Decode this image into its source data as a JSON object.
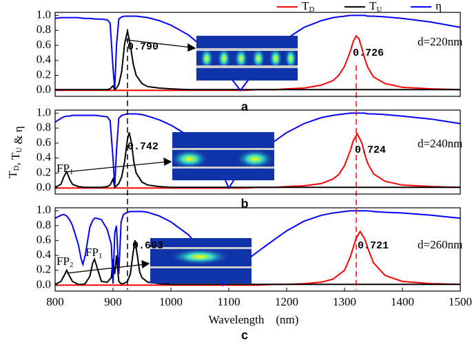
{
  "chart_data": [
    {
      "type": "line",
      "label": "a",
      "xlim": [
        800,
        1500
      ],
      "ylim": [
        -0.08,
        1.04
      ],
      "yticks": [
        {
          "value": 0,
          "label": "0.0"
        },
        0.2,
        0.4,
        0.6,
        0.8,
        {
          "value": 1,
          "label": "1.0"
        }
      ],
      "annotations": [
        "0.790",
        "0.726",
        "d=220nm"
      ],
      "x": [
        800,
        810,
        820,
        830,
        840,
        850,
        860,
        870,
        880,
        890,
        895,
        900,
        903,
        906,
        910,
        915,
        920,
        925,
        930,
        935,
        940,
        950,
        960,
        980,
        1000,
        1030,
        1060,
        1090,
        1100,
        1110,
        1120,
        1130,
        1150,
        1180,
        1200,
        1230,
        1260,
        1280,
        1290,
        1300,
        1310,
        1315,
        1320,
        1325,
        1330,
        1335,
        1340,
        1350,
        1370,
        1400,
        1450,
        1500
      ],
      "series": [
        {
          "name": "TD",
          "color": "#ff0000",
          "values": [
            0,
            0,
            0,
            0,
            0,
            0,
            0,
            0,
            0,
            0,
            0,
            0,
            0,
            0,
            0,
            0,
            0,
            0,
            0,
            0,
            0,
            0,
            0,
            0,
            0,
            0,
            0,
            0,
            0,
            0,
            0,
            0,
            0.01,
            0.01,
            0.02,
            0.03,
            0.07,
            0.13,
            0.2,
            0.32,
            0.52,
            0.65,
            0.726,
            0.69,
            0.56,
            0.42,
            0.31,
            0.18,
            0.09,
            0.04,
            0.02,
            0.01
          ]
        },
        {
          "name": "TU",
          "color": "#000000",
          "values": [
            0.01,
            0.01,
            0.01,
            0.01,
            0.01,
            0.01,
            0.01,
            0.01,
            0.01,
            0.01,
            0.02,
            0.06,
            0.01,
            0.03,
            0.08,
            0.25,
            0.62,
            0.79,
            0.6,
            0.35,
            0.2,
            0.09,
            0.05,
            0.03,
            0.02,
            0.01,
            0.01,
            0.01,
            0.01,
            0.01,
            0.01,
            0.01,
            0.01,
            0.01,
            0.01,
            0.01,
            0.01,
            0.01,
            0.01,
            0.01,
            0.01,
            0.01,
            0.01,
            0.01,
            0.01,
            0.01,
            0.01,
            0.01,
            0.01,
            0.01,
            0.01,
            0.01
          ]
        },
        {
          "name": "η",
          "color": "#0000ff",
          "values": [
            0.96,
            0.97,
            0.97,
            0.97,
            0.97,
            0.96,
            0.96,
            0.95,
            0.95,
            0.94,
            0.9,
            0.3,
            0.02,
            0.6,
            0.95,
            0.98,
            0.99,
            0.99,
            0.99,
            0.99,
            0.99,
            0.98,
            0.97,
            0.93,
            0.87,
            0.74,
            0.55,
            0.3,
            0.2,
            0.1,
            0.0,
            0.1,
            0.3,
            0.55,
            0.69,
            0.84,
            0.93,
            0.97,
            0.98,
            0.99,
            1.0,
            1.0,
            1.0,
            1.0,
            1.0,
            1.0,
            0.99,
            0.99,
            0.98,
            0.96,
            0.91,
            0.84
          ]
        }
      ]
    },
    {
      "type": "line",
      "label": "b",
      "ylabel": "TD, TU & η",
      "xlim": [
        800,
        1500
      ],
      "ylim": [
        -0.08,
        1.04
      ],
      "yticks": [
        {
          "value": 0,
          "label": "0.0"
        },
        0.2,
        0.4,
        0.6,
        0.8,
        {
          "value": 1,
          "label": "1.0"
        }
      ],
      "annotations": [
        "0.742",
        "0.724",
        "d=240nm",
        "FP1"
      ],
      "x": [
        800,
        810,
        815,
        820,
        825,
        830,
        840,
        850,
        860,
        870,
        880,
        890,
        895,
        900,
        903,
        906,
        910,
        915,
        920,
        925,
        928,
        932,
        936,
        940,
        950,
        960,
        980,
        1000,
        1030,
        1060,
        1090,
        1100,
        1110,
        1120,
        1130,
        1150,
        1180,
        1200,
        1230,
        1260,
        1280,
        1290,
        1300,
        1310,
        1315,
        1322,
        1330,
        1335,
        1340,
        1350,
        1370,
        1400,
        1450,
        1500
      ],
      "series": [
        {
          "color": "#ff0000",
          "values": [
            0,
            0,
            0,
            0,
            0,
            0,
            0,
            0,
            0,
            0,
            0,
            0,
            0,
            0,
            0,
            0,
            0,
            0,
            0,
            0,
            0,
            0,
            0,
            0,
            0,
            0,
            0,
            0,
            0,
            0,
            0,
            0,
            0,
            0,
            0,
            0.01,
            0.01,
            0.02,
            0.03,
            0.06,
            0.12,
            0.18,
            0.3,
            0.5,
            0.63,
            0.724,
            0.6,
            0.45,
            0.33,
            0.19,
            0.09,
            0.04,
            0.02,
            0.01
          ]
        },
        {
          "color": "#000000",
          "values": [
            0.01,
            0.05,
            0.15,
            0.22,
            0.12,
            0.05,
            0.02,
            0.01,
            0.01,
            0.01,
            0.01,
            0.02,
            0.04,
            0.12,
            0.01,
            0.03,
            0.06,
            0.15,
            0.35,
            0.65,
            0.742,
            0.6,
            0.35,
            0.2,
            0.08,
            0.04,
            0.02,
            0.01,
            0.01,
            0.01,
            0.01,
            0.01,
            0.01,
            0.01,
            0.01,
            0.01,
            0.01,
            0.01,
            0.01,
            0.01,
            0.01,
            0.01,
            0.01,
            0.01,
            0.01,
            0.01,
            0.01,
            0.01,
            0.01,
            0.01,
            0.01,
            0.01,
            0.01,
            0.01
          ]
        },
        {
          "color": "#0000ff",
          "values": [
            0.88,
            0.93,
            0.95,
            0.96,
            0.96,
            0.97,
            0.97,
            0.97,
            0.97,
            0.97,
            0.96,
            0.95,
            0.9,
            0.4,
            0.02,
            0.5,
            0.93,
            0.97,
            0.98,
            0.99,
            0.99,
            0.99,
            0.99,
            0.99,
            0.98,
            0.96,
            0.91,
            0.84,
            0.7,
            0.5,
            0.18,
            0.0,
            0.12,
            0.22,
            0.3,
            0.45,
            0.63,
            0.74,
            0.86,
            0.94,
            0.97,
            0.98,
            0.99,
            1.0,
            1.0,
            1.0,
            1.0,
            1.0,
            0.99,
            0.99,
            0.98,
            0.96,
            0.92,
            0.86
          ]
        }
      ]
    },
    {
      "type": "line",
      "label": "c",
      "xlabel": "Wavelength    (nm)",
      "xlim": [
        800,
        1500
      ],
      "ylim": [
        -0.08,
        1.04
      ],
      "xticks": [
        800,
        900,
        1000,
        1100,
        1200,
        1300,
        1400,
        1500
      ],
      "yticks": [
        {
          "value": 0,
          "label": "0.0"
        },
        0.2,
        0.4,
        0.6,
        0.8,
        {
          "value": 1,
          "label": "1.0"
        }
      ],
      "annotations": [
        "0.603",
        "0.721",
        "d=260nm",
        "FP2",
        "FP1"
      ],
      "x": [
        800,
        810,
        815,
        820,
        825,
        830,
        840,
        845,
        848,
        852,
        860,
        865,
        868,
        872,
        880,
        890,
        897,
        900,
        903,
        906,
        910,
        914,
        918,
        925,
        930,
        935,
        938,
        942,
        946,
        950,
        960,
        980,
        1000,
        1030,
        1060,
        1085,
        1090,
        1095,
        1110,
        1130,
        1150,
        1180,
        1200,
        1230,
        1260,
        1280,
        1300,
        1310,
        1320,
        1327,
        1335,
        1340,
        1350,
        1370,
        1400,
        1450,
        1500
      ],
      "series": [
        {
          "color": "#ff0000",
          "values": [
            0,
            0,
            0,
            0,
            0,
            0,
            0,
            0,
            0,
            0,
            0,
            0,
            0,
            0,
            0,
            0,
            0,
            0,
            0,
            0,
            0,
            0,
            0,
            0,
            0,
            0,
            0,
            0,
            0,
            0,
            0,
            0,
            0,
            0,
            0,
            0,
            0,
            0,
            0,
            0,
            0,
            0.01,
            0.01,
            0.02,
            0.04,
            0.08,
            0.2,
            0.38,
            0.63,
            0.721,
            0.62,
            0.5,
            0.3,
            0.13,
            0.05,
            0.02,
            0.01
          ]
        },
        {
          "color": "#000000",
          "values": [
            0.01,
            0.05,
            0.12,
            0.2,
            0.12,
            0.05,
            0.01,
            0.01,
            0.01,
            0.02,
            0.12,
            0.3,
            0.35,
            0.25,
            0.05,
            0.04,
            0.1,
            0.35,
            0.15,
            0.4,
            0.05,
            0.02,
            0.02,
            0.05,
            0.15,
            0.45,
            0.603,
            0.4,
            0.18,
            0.1,
            0.04,
            0.02,
            0.01,
            0.01,
            0.01,
            0.01,
            0.01,
            0.01,
            0.01,
            0.01,
            0.01,
            0.01,
            0.01,
            0.01,
            0.01,
            0.01,
            0.01,
            0.01,
            0.01,
            0.01,
            0.01,
            0.01,
            0.01,
            0.01,
            0.01,
            0.01,
            0.01
          ]
        },
        {
          "color": "#0000ff",
          "values": [
            0.9,
            0.94,
            0.95,
            0.93,
            0.88,
            0.8,
            0.55,
            0.35,
            0.28,
            0.4,
            0.78,
            0.87,
            0.9,
            0.9,
            0.88,
            0.75,
            0.55,
            0.02,
            0.7,
            0.8,
            0.15,
            0.85,
            0.95,
            0.98,
            0.99,
            0.99,
            0.99,
            0.99,
            0.99,
            0.99,
            0.98,
            0.93,
            0.85,
            0.68,
            0.42,
            0.08,
            0.0,
            0.08,
            0.2,
            0.33,
            0.45,
            0.62,
            0.73,
            0.86,
            0.94,
            0.97,
            0.99,
            1.0,
            1.0,
            1.0,
            1.0,
            1.0,
            0.99,
            0.98,
            0.97,
            0.94,
            0.9
          ]
        }
      ]
    }
  ]
}
